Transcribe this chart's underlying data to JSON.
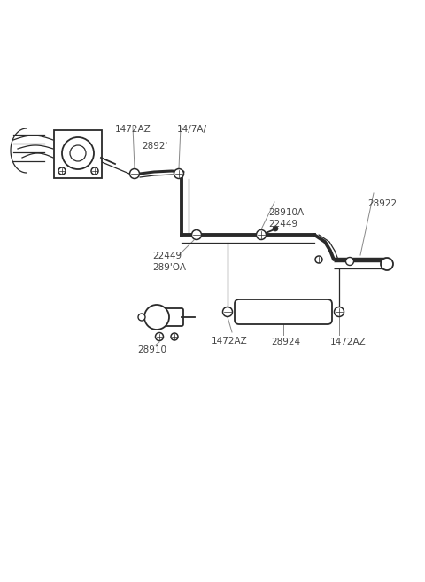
{
  "bg_color": "#ffffff",
  "line_color": "#2a2a2a",
  "label_color": "#444444",
  "figsize": [
    4.8,
    6.57
  ],
  "dpi": 100,
  "labels": {
    "1472AZ_tl": "1472AZ",
    "1472AZ_tr": "14/7A/",
    "2892": "2892'",
    "28910A": "28910A",
    "22449_mid": "22449",
    "28922": "28922",
    "22449_left": "22449",
    "289OA": "289'OA",
    "28910": "28910",
    "1472AZ_bl": "1472AZ",
    "28924": "28924",
    "1472AZ_br": "1472AZ"
  }
}
